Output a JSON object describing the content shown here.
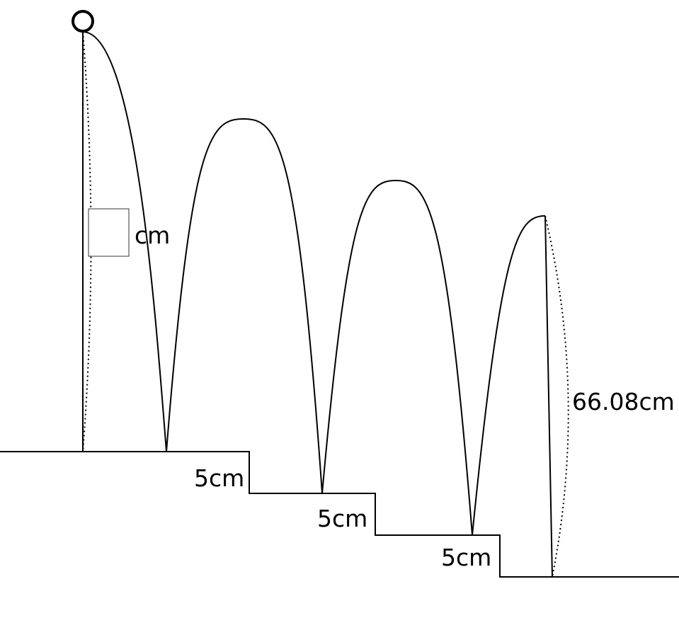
{
  "diagram": {
    "unknown_height_box": "",
    "unknown_height_unit": "cm",
    "step_labels": [
      "5cm",
      "5cm",
      "5cm"
    ],
    "final_height_label": "66.08cm"
  },
  "colors": {
    "line": "#000000",
    "background": "#ffffff"
  }
}
